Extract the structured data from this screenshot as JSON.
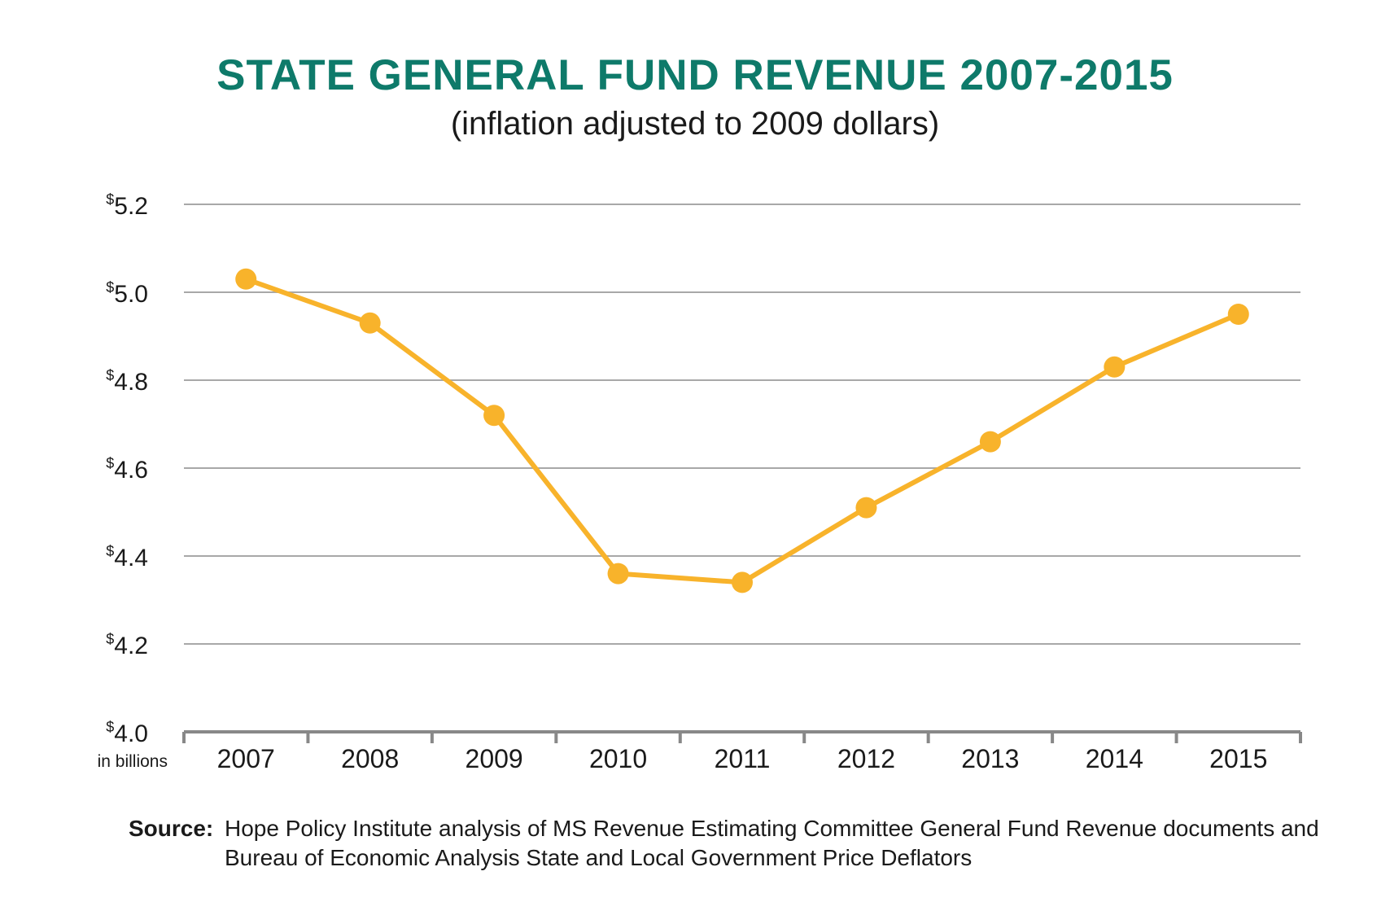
{
  "chart_data": {
    "type": "line",
    "title": "STATE GENERAL FUND REVENUE 2007-2015",
    "subtitle": "(inflation adjusted to 2009 dollars)",
    "unit_label": "in billions",
    "categories": [
      "2007",
      "2008",
      "2009",
      "2010",
      "2011",
      "2012",
      "2013",
      "2014",
      "2015"
    ],
    "series": [
      {
        "values": [
          5.03,
          4.93,
          4.72,
          4.36,
          4.34,
          4.51,
          4.66,
          4.83,
          4.95
        ]
      }
    ],
    "y_ticks": [
      {
        "value": 4.0,
        "label": "4.0"
      },
      {
        "value": 4.2,
        "label": "4.2"
      },
      {
        "value": 4.4,
        "label": "4.4"
      },
      {
        "value": 4.6,
        "label": "4.6"
      },
      {
        "value": 4.8,
        "label": "4.8"
      },
      {
        "value": 5.0,
        "label": "5.0"
      },
      {
        "value": 5.2,
        "label": "5.2"
      }
    ],
    "currency_symbol": "$",
    "ylim": [
      4.0,
      5.2
    ],
    "grid": true,
    "colors": {
      "line": "#f8b32b",
      "grid": "#a8a8a8",
      "axis": "#888888",
      "title": "#0e7a6a"
    }
  },
  "source": {
    "label": "Source:",
    "text": "Hope Policy Institute analysis of MS Revenue Estimating Committee General Fund Revenue documents and Bureau of Economic Analysis State and Local Government Price Deflators"
  }
}
